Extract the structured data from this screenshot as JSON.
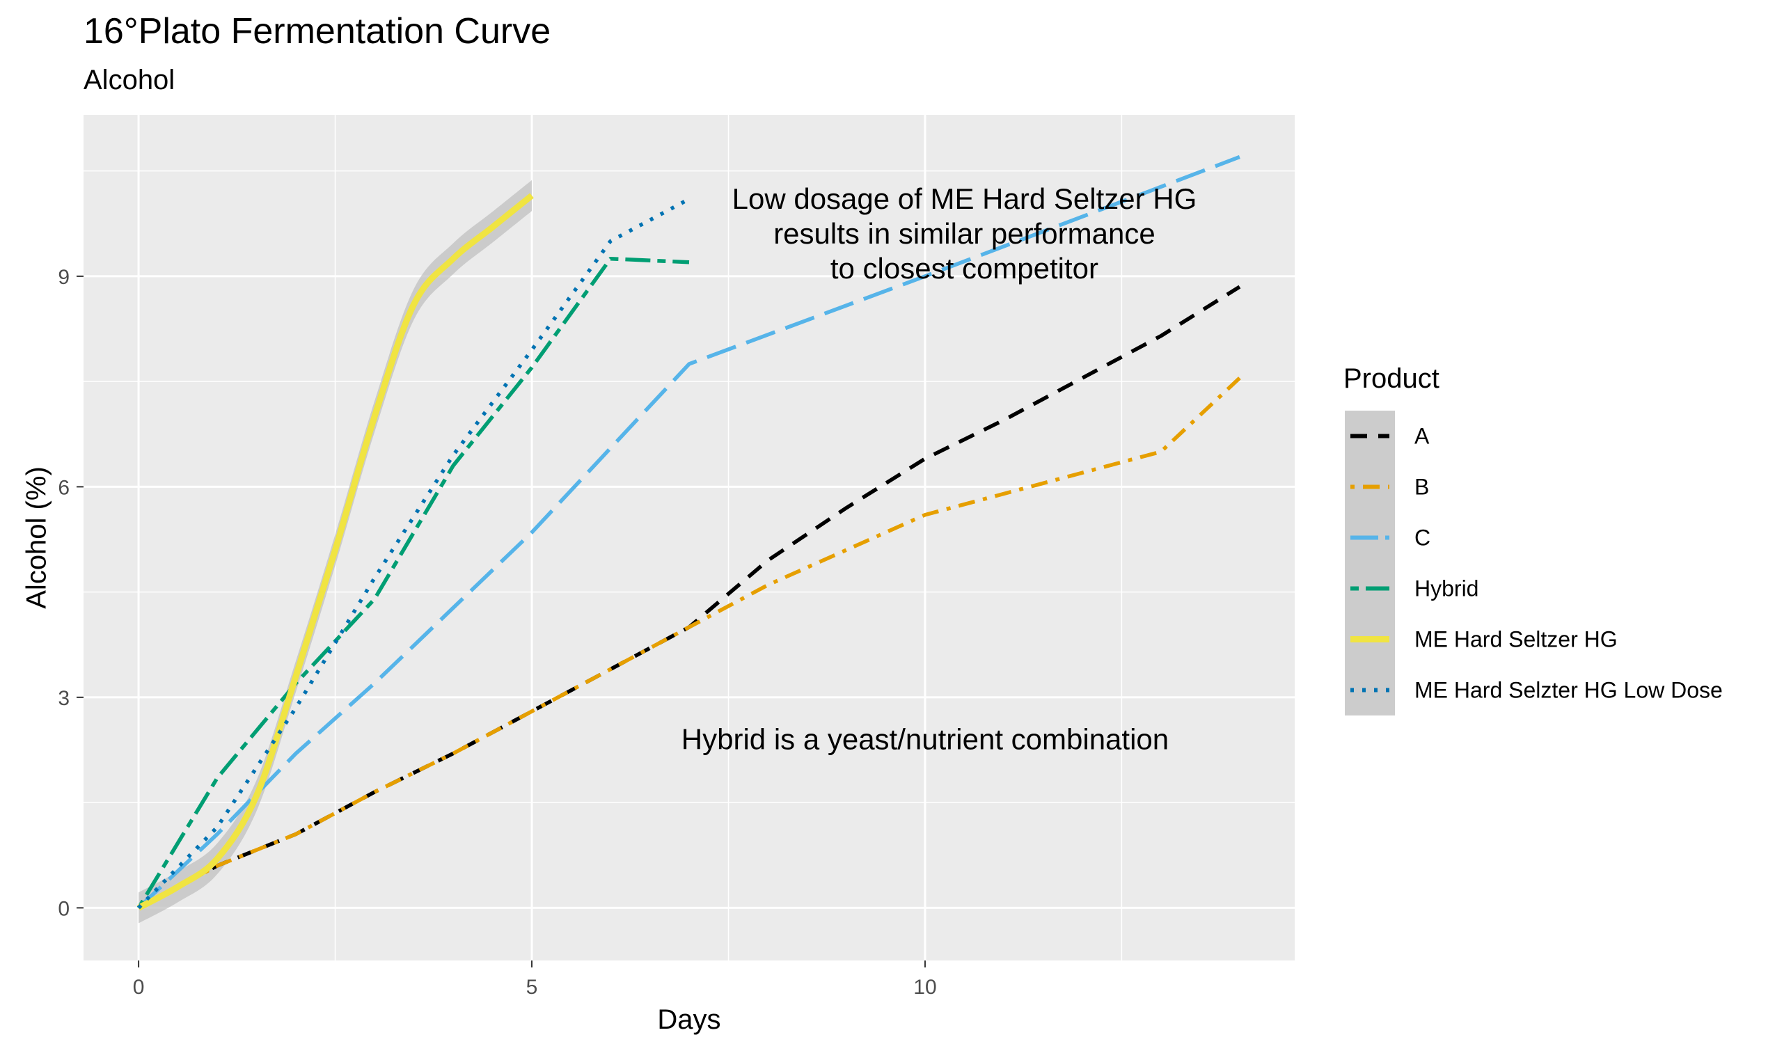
{
  "chart_data": {
    "type": "line",
    "title": "16°Plato Fermentation Curve",
    "subtitle": "Alcohol",
    "xlabel": "Days",
    "ylabel": "Alcohol (%)",
    "xlim": [
      -0.7,
      14.7
    ],
    "ylim": [
      -0.75,
      11.3
    ],
    "x_ticks": [
      0,
      5,
      10
    ],
    "y_ticks": [
      0,
      3,
      6,
      9
    ],
    "grid": true,
    "background": "#ebebeb",
    "legend": {
      "title": "Product",
      "position": "right"
    },
    "series": [
      {
        "name": "A",
        "color": "#000000",
        "dash": "dash",
        "points": [
          [
            0,
            0
          ],
          [
            1,
            0.6
          ],
          [
            2,
            1.05
          ],
          [
            3,
            1.65
          ],
          [
            4,
            2.2
          ],
          [
            5,
            2.8
          ],
          [
            6,
            3.4
          ],
          [
            7,
            4.0
          ],
          [
            8,
            4.95
          ],
          [
            9,
            5.7
          ],
          [
            10,
            6.4
          ],
          [
            11,
            6.95
          ],
          [
            12,
            7.55
          ],
          [
            13,
            8.15
          ],
          [
            14,
            8.85
          ]
        ]
      },
      {
        "name": "B",
        "color": "#E69F00",
        "dash": "dotdash",
        "points": [
          [
            0,
            0
          ],
          [
            1,
            0.6
          ],
          [
            2,
            1.05
          ],
          [
            3,
            1.65
          ],
          [
            4,
            2.2
          ],
          [
            5,
            2.8
          ],
          [
            6,
            3.4
          ],
          [
            7,
            4.0
          ],
          [
            8,
            4.6
          ],
          [
            9,
            5.1
          ],
          [
            10,
            5.6
          ],
          [
            11,
            5.9
          ],
          [
            12,
            6.2
          ],
          [
            13,
            6.5
          ],
          [
            14,
            7.55
          ]
        ]
      },
      {
        "name": "C",
        "color": "#56B4E9",
        "dash": "longdash",
        "points": [
          [
            0,
            0
          ],
          [
            1,
            1.05
          ],
          [
            2,
            2.2
          ],
          [
            3,
            3.2
          ],
          [
            5,
            5.35
          ],
          [
            7,
            7.75
          ],
          [
            10,
            9.0
          ],
          [
            14,
            10.7
          ]
        ]
      },
      {
        "name": "Hybrid",
        "color": "#009E73",
        "dash": "twodash",
        "points": [
          [
            0,
            0
          ],
          [
            1,
            1.85
          ],
          [
            2,
            3.2
          ],
          [
            3,
            4.4
          ],
          [
            4,
            6.3
          ],
          [
            5,
            7.7
          ],
          [
            6,
            9.25
          ],
          [
            7,
            9.2
          ]
        ]
      },
      {
        "name": "ME Hard Seltzer HG",
        "color": "#F0E442",
        "dash": "solid",
        "smooth": true,
        "points": [
          [
            0,
            0
          ],
          [
            0.5,
            0.3
          ],
          [
            1,
            0.7
          ],
          [
            1.5,
            1.6
          ],
          [
            2,
            3.3
          ],
          [
            2.5,
            5.1
          ],
          [
            3,
            7.0
          ],
          [
            3.5,
            8.6
          ],
          [
            4,
            9.25
          ],
          [
            4.5,
            9.7
          ],
          [
            5,
            10.15
          ]
        ]
      },
      {
        "name": "ME Hard Selzter HG Low Dose",
        "color": "#0072B2",
        "dash": "dotted",
        "points": [
          [
            0,
            0
          ],
          [
            1,
            1.15
          ],
          [
            2,
            2.85
          ],
          [
            3,
            4.7
          ],
          [
            4,
            6.45
          ],
          [
            5,
            7.95
          ],
          [
            6,
            9.5
          ],
          [
            7,
            10.1
          ]
        ]
      }
    ],
    "annotations": [
      {
        "lines": [
          "Low dosage of ME Hard Seltzer HG",
          "results in similar performance",
          "to closest competitor"
        ],
        "x": 10.5,
        "y": 10.1
      },
      {
        "lines": [
          "Hybrid is a yeast/nutrient combination"
        ],
        "x": 10.0,
        "y": 2.4
      }
    ]
  }
}
